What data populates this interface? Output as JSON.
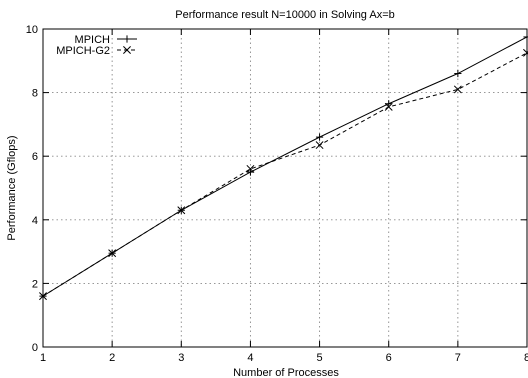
{
  "chart_data": {
    "type": "line",
    "title": "Performance result N=10000 in Solving Ax=b",
    "xlabel": "Number of Processes",
    "ylabel": "Performance (Gflops)",
    "x": [
      1,
      2,
      3,
      4,
      5,
      6,
      7,
      8
    ],
    "xlim": [
      1,
      8
    ],
    "ylim": [
      0,
      10
    ],
    "xticks": [
      "1",
      "2",
      "3",
      "4",
      "5",
      "6",
      "7",
      "8"
    ],
    "yticks": [
      "0",
      "2",
      "4",
      "6",
      "8",
      "10"
    ],
    "grid": true,
    "legend_position": "top-left",
    "series": [
      {
        "name": "MPICH",
        "values": [
          1.6,
          2.95,
          4.3,
          5.5,
          6.6,
          7.65,
          8.6,
          9.75
        ],
        "line_style": "solid",
        "marker": "plus",
        "color": "#000000"
      },
      {
        "name": "MPICH-G2",
        "values": [
          1.6,
          2.95,
          4.3,
          5.6,
          6.35,
          7.55,
          8.1,
          9.25
        ],
        "line_style": "dashed",
        "marker": "cross",
        "color": "#000000"
      }
    ]
  }
}
